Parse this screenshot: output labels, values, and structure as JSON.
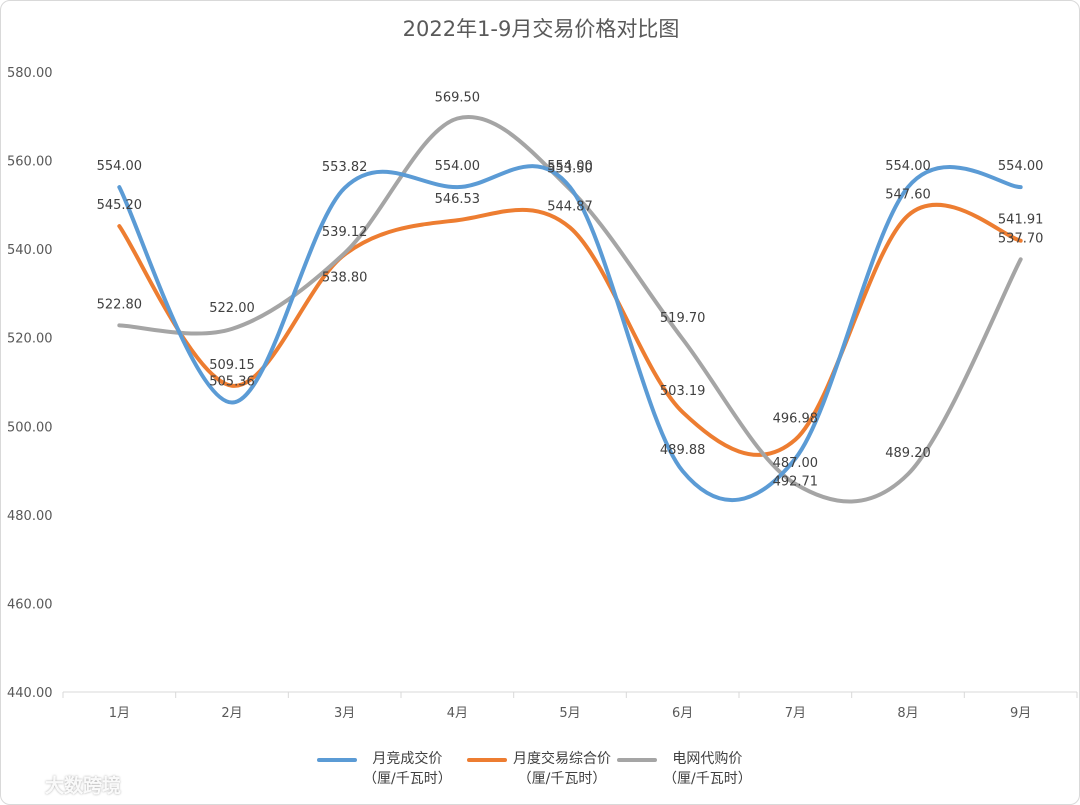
{
  "chart_data": {
    "type": "line",
    "title": "2022年1-9月交易价格对比图",
    "categories": [
      "1月",
      "2月",
      "3月",
      "4月",
      "5月",
      "6月",
      "7月",
      "8月",
      "9月"
    ],
    "ylim": [
      440,
      580
    ],
    "yticks": [
      "440.00",
      "460.00",
      "480.00",
      "500.00",
      "520.00",
      "540.00",
      "560.00",
      "580.00"
    ],
    "grid": false,
    "smooth": true,
    "legend_position": "bottom",
    "series": [
      {
        "name": "月竞成交价\n（厘/千瓦时）",
        "color": "#5b9bd5",
        "values": [
          554.0,
          505.36,
          553.82,
          554.0,
          554.0,
          489.88,
          492.71,
          554.0,
          554.0
        ],
        "labels": [
          "554.00",
          "505.36",
          "553.82",
          "554.00",
          "554.00",
          "489.88",
          "492.71",
          "554.00",
          "554.00"
        ]
      },
      {
        "name": "月度交易综合价\n（厘/千瓦时）",
        "color": "#ed7d31",
        "values": [
          545.2,
          509.15,
          538.8,
          546.53,
          544.87,
          503.19,
          496.98,
          547.6,
          541.91
        ],
        "labels": [
          "545.20",
          "509.15",
          "538.80",
          "546.53",
          "544.87",
          "503.19",
          "496.98",
          "547.60",
          "541.91"
        ]
      },
      {
        "name": "电网代购价\n（厘/千瓦时）",
        "color": "#a5a5a5",
        "values": [
          522.8,
          522.0,
          539.12,
          569.5,
          553.5,
          519.7,
          487.0,
          489.2,
          537.7
        ],
        "labels": [
          "522.80",
          "522.00",
          "539.12",
          "569.50",
          "553.50",
          "519.70",
          "487.00",
          "489.20",
          "537.70"
        ]
      }
    ]
  },
  "watermark": {
    "text": "大数跨境"
  }
}
